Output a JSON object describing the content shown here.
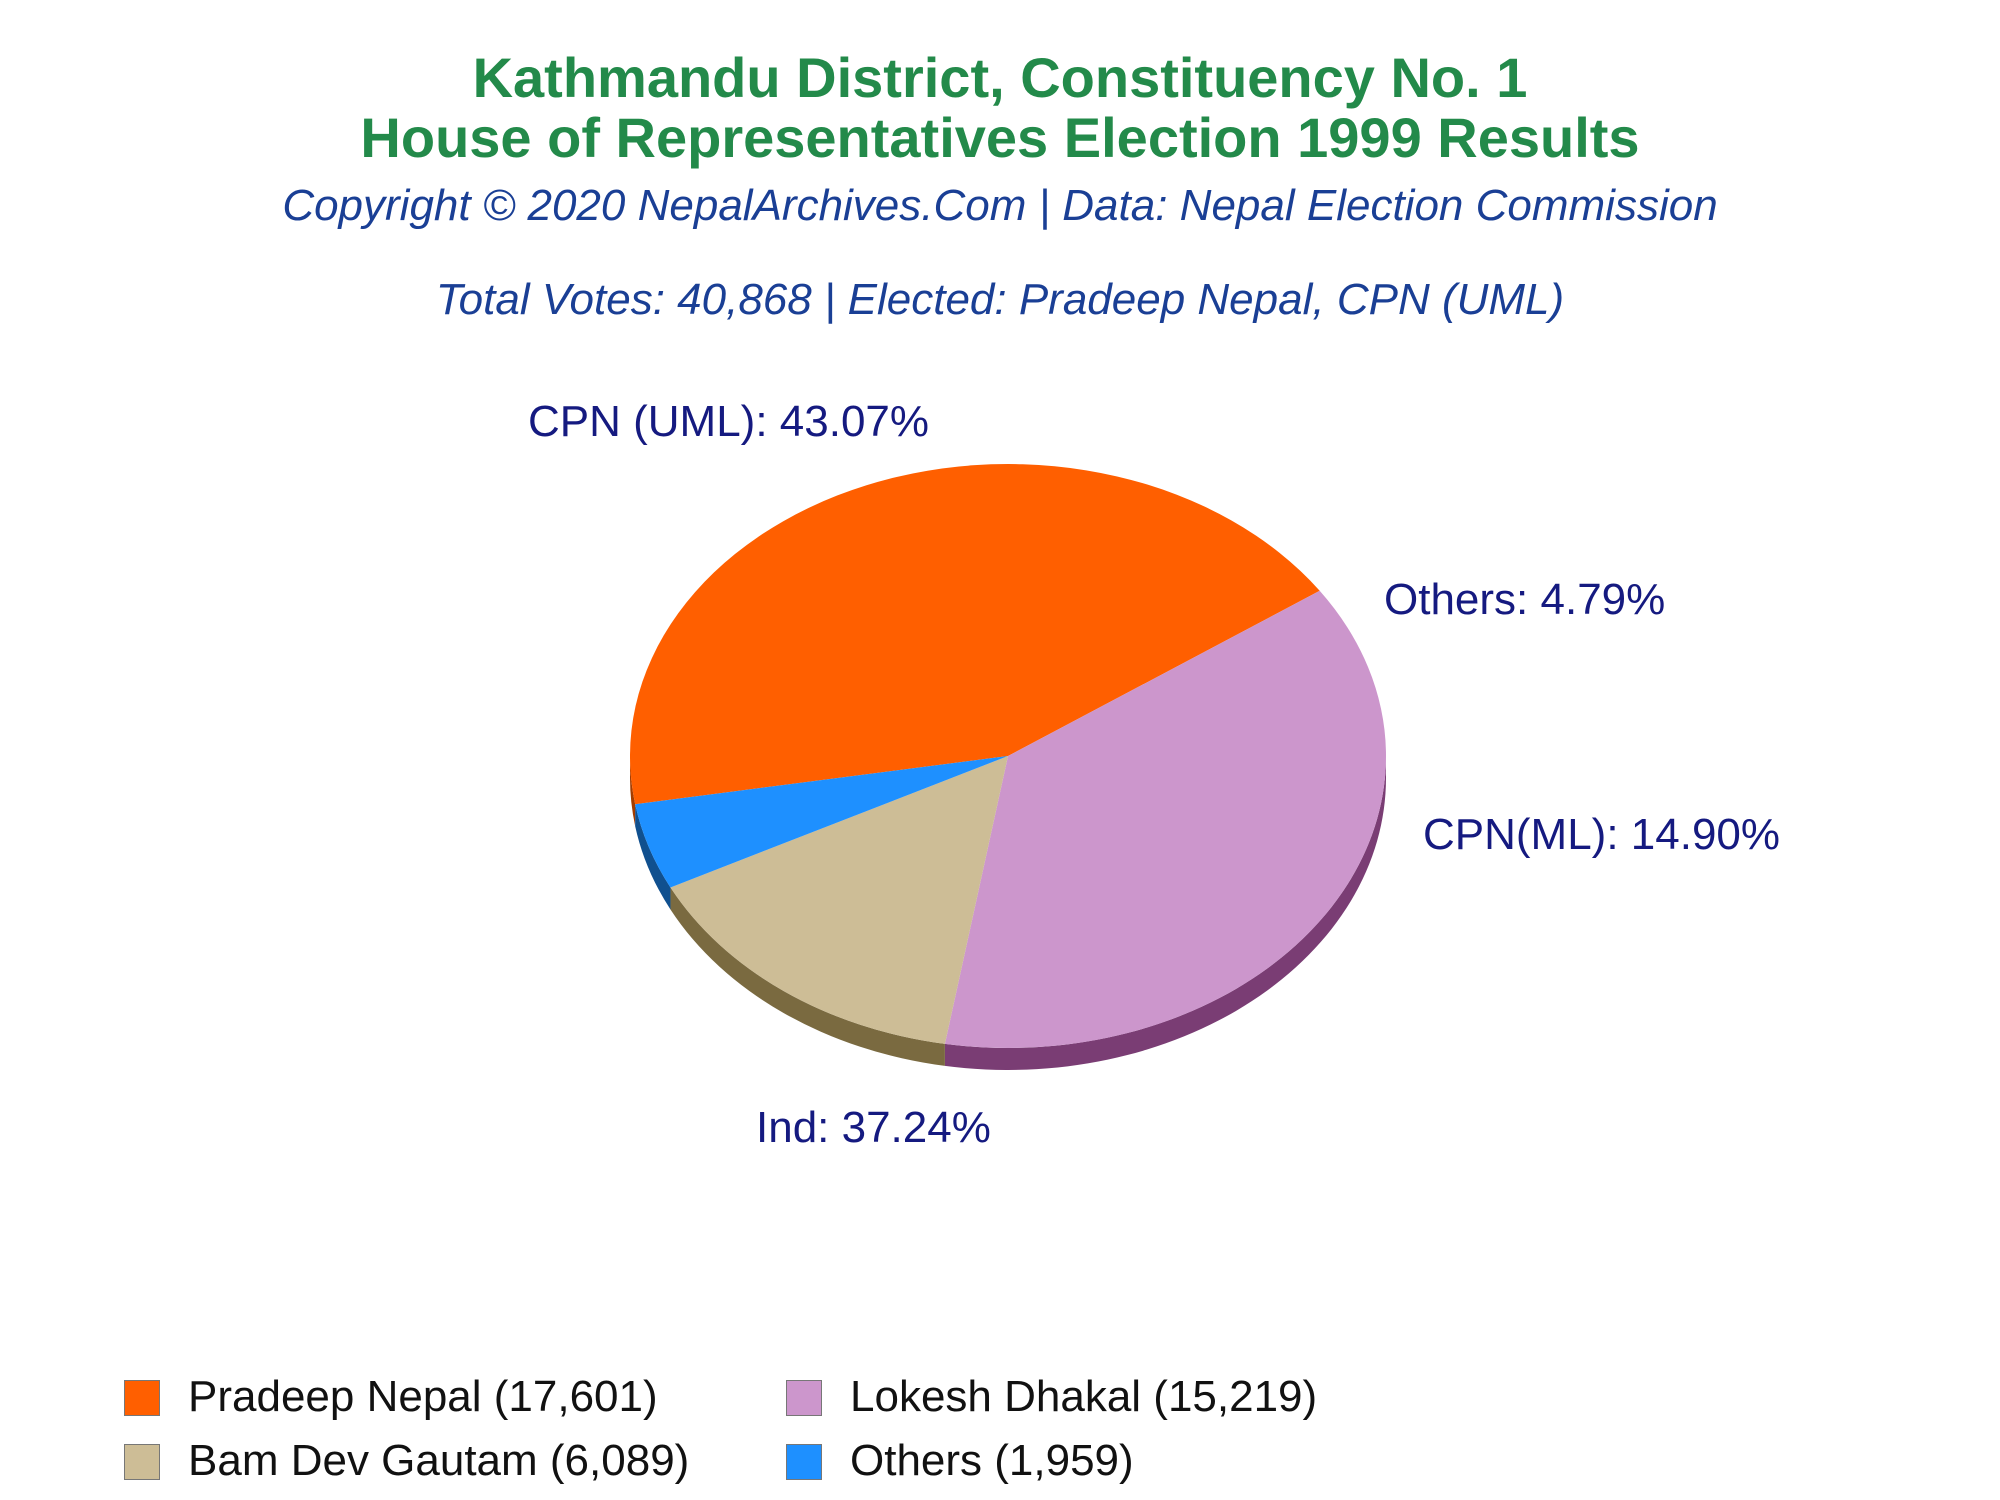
{
  "chart_data": {
    "type": "pie",
    "title": "Kathmandu District, Constituency No. 1",
    "title2": "House of Representatives Election 1999 Results",
    "subtitle": "Copyright © 2020 NepalArchives.Com | Data: Nepal Election Commission",
    "summary": "Total Votes: 40,868 | Elected: Pradeep Nepal, CPN (UML)",
    "slices": [
      {
        "label": "CPN (UML): 43.07%",
        "legend": "Pradeep Nepal (17,601)",
        "value": 17601,
        "percent": 43.07,
        "color": "#ff5f00",
        "side_color": "#a33c00"
      },
      {
        "label": "Ind: 37.24%",
        "legend": "Lokesh Dhakal (15,219)",
        "value": 15219,
        "percent": 37.24,
        "color": "#cc96cc",
        "side_color": "#7a3d74"
      },
      {
        "label": "CPN(ML): 14.90%",
        "legend": "Bam Dev Gautam (6,089)",
        "value": 6089,
        "percent": 14.9,
        "color": "#cdbd96",
        "side_color": "#7a6a40"
      },
      {
        "label": "Others: 4.79%",
        "legend": "Others (1,959)",
        "value": 1959,
        "percent": 4.79,
        "color": "#1e90ff",
        "side_color": "#10508f"
      }
    ],
    "legend_placement": "bottom-left"
  }
}
